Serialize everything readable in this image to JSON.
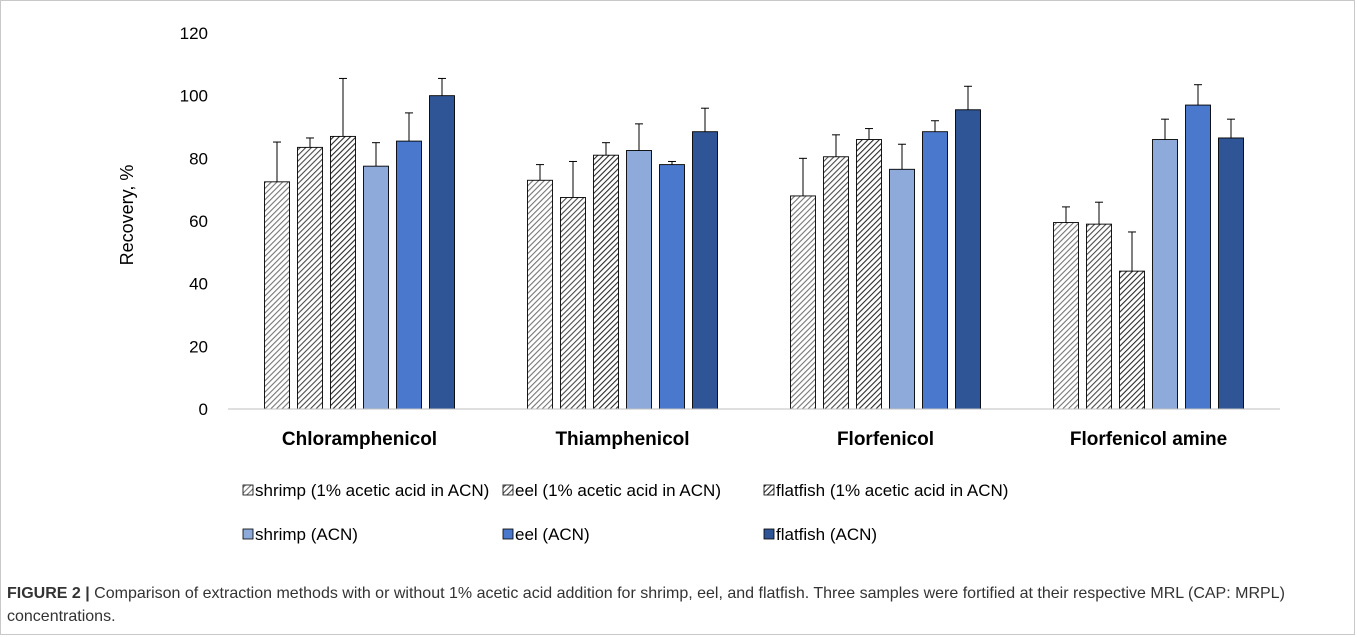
{
  "chart_data": {
    "type": "bar",
    "ylabel": "Recovery, %",
    "ylim": [
      0,
      120
    ],
    "yticks": [
      0,
      20,
      40,
      60,
      80,
      100,
      120
    ],
    "grid": false,
    "legend_position": "bottom",
    "categories": [
      "Chloramphenicol",
      "Thiamphenicol",
      "Florfenicol",
      "Florfenicol amine"
    ],
    "series": [
      {
        "name": "shrimp (1% acetic acid in ACN)",
        "fill": "hatch",
        "hatch_color": "#757575",
        "values": [
          72.5,
          73,
          68,
          59.5
        ],
        "errors": [
          12.7,
          5,
          12,
          5
        ]
      },
      {
        "name": "eel (1% acetic acid in ACN)",
        "fill": "hatch",
        "hatch_color": "#4a4a4a",
        "values": [
          83.5,
          67.5,
          80.5,
          59
        ],
        "errors": [
          3,
          11.5,
          7,
          7
        ]
      },
      {
        "name": "flatfish (1% acetic acid in ACN)",
        "fill": "hatch",
        "hatch_color": "#2a2a2a",
        "values": [
          87,
          81,
          86,
          44
        ],
        "errors": [
          18.5,
          4,
          3.5,
          12.5
        ]
      },
      {
        "name": "shrimp (ACN)",
        "fill": "solid",
        "color": "#8eaadb",
        "values": [
          77.5,
          82.5,
          76.5,
          86
        ],
        "errors": [
          7.5,
          8.5,
          8,
          6.5
        ]
      },
      {
        "name": "eel (ACN)",
        "fill": "solid",
        "color": "#4a78cc",
        "values": [
          85.5,
          78,
          88.5,
          97
        ],
        "errors": [
          9,
          1,
          3.5,
          6.5
        ]
      },
      {
        "name": "flatfish (ACN)",
        "fill": "solid",
        "color": "#2f5597",
        "values": [
          100,
          88.5,
          95.5,
          86.5
        ],
        "errors": [
          5.5,
          7.5,
          7.5,
          6
        ]
      }
    ]
  },
  "caption": {
    "label": "FIGURE 2 |",
    "text": " Comparison of extraction methods with or without 1% acetic acid addition for shrimp, eel, and flatfish. Three samples were fortified at their respective MRL (CAP: MRPL) concentrations."
  }
}
